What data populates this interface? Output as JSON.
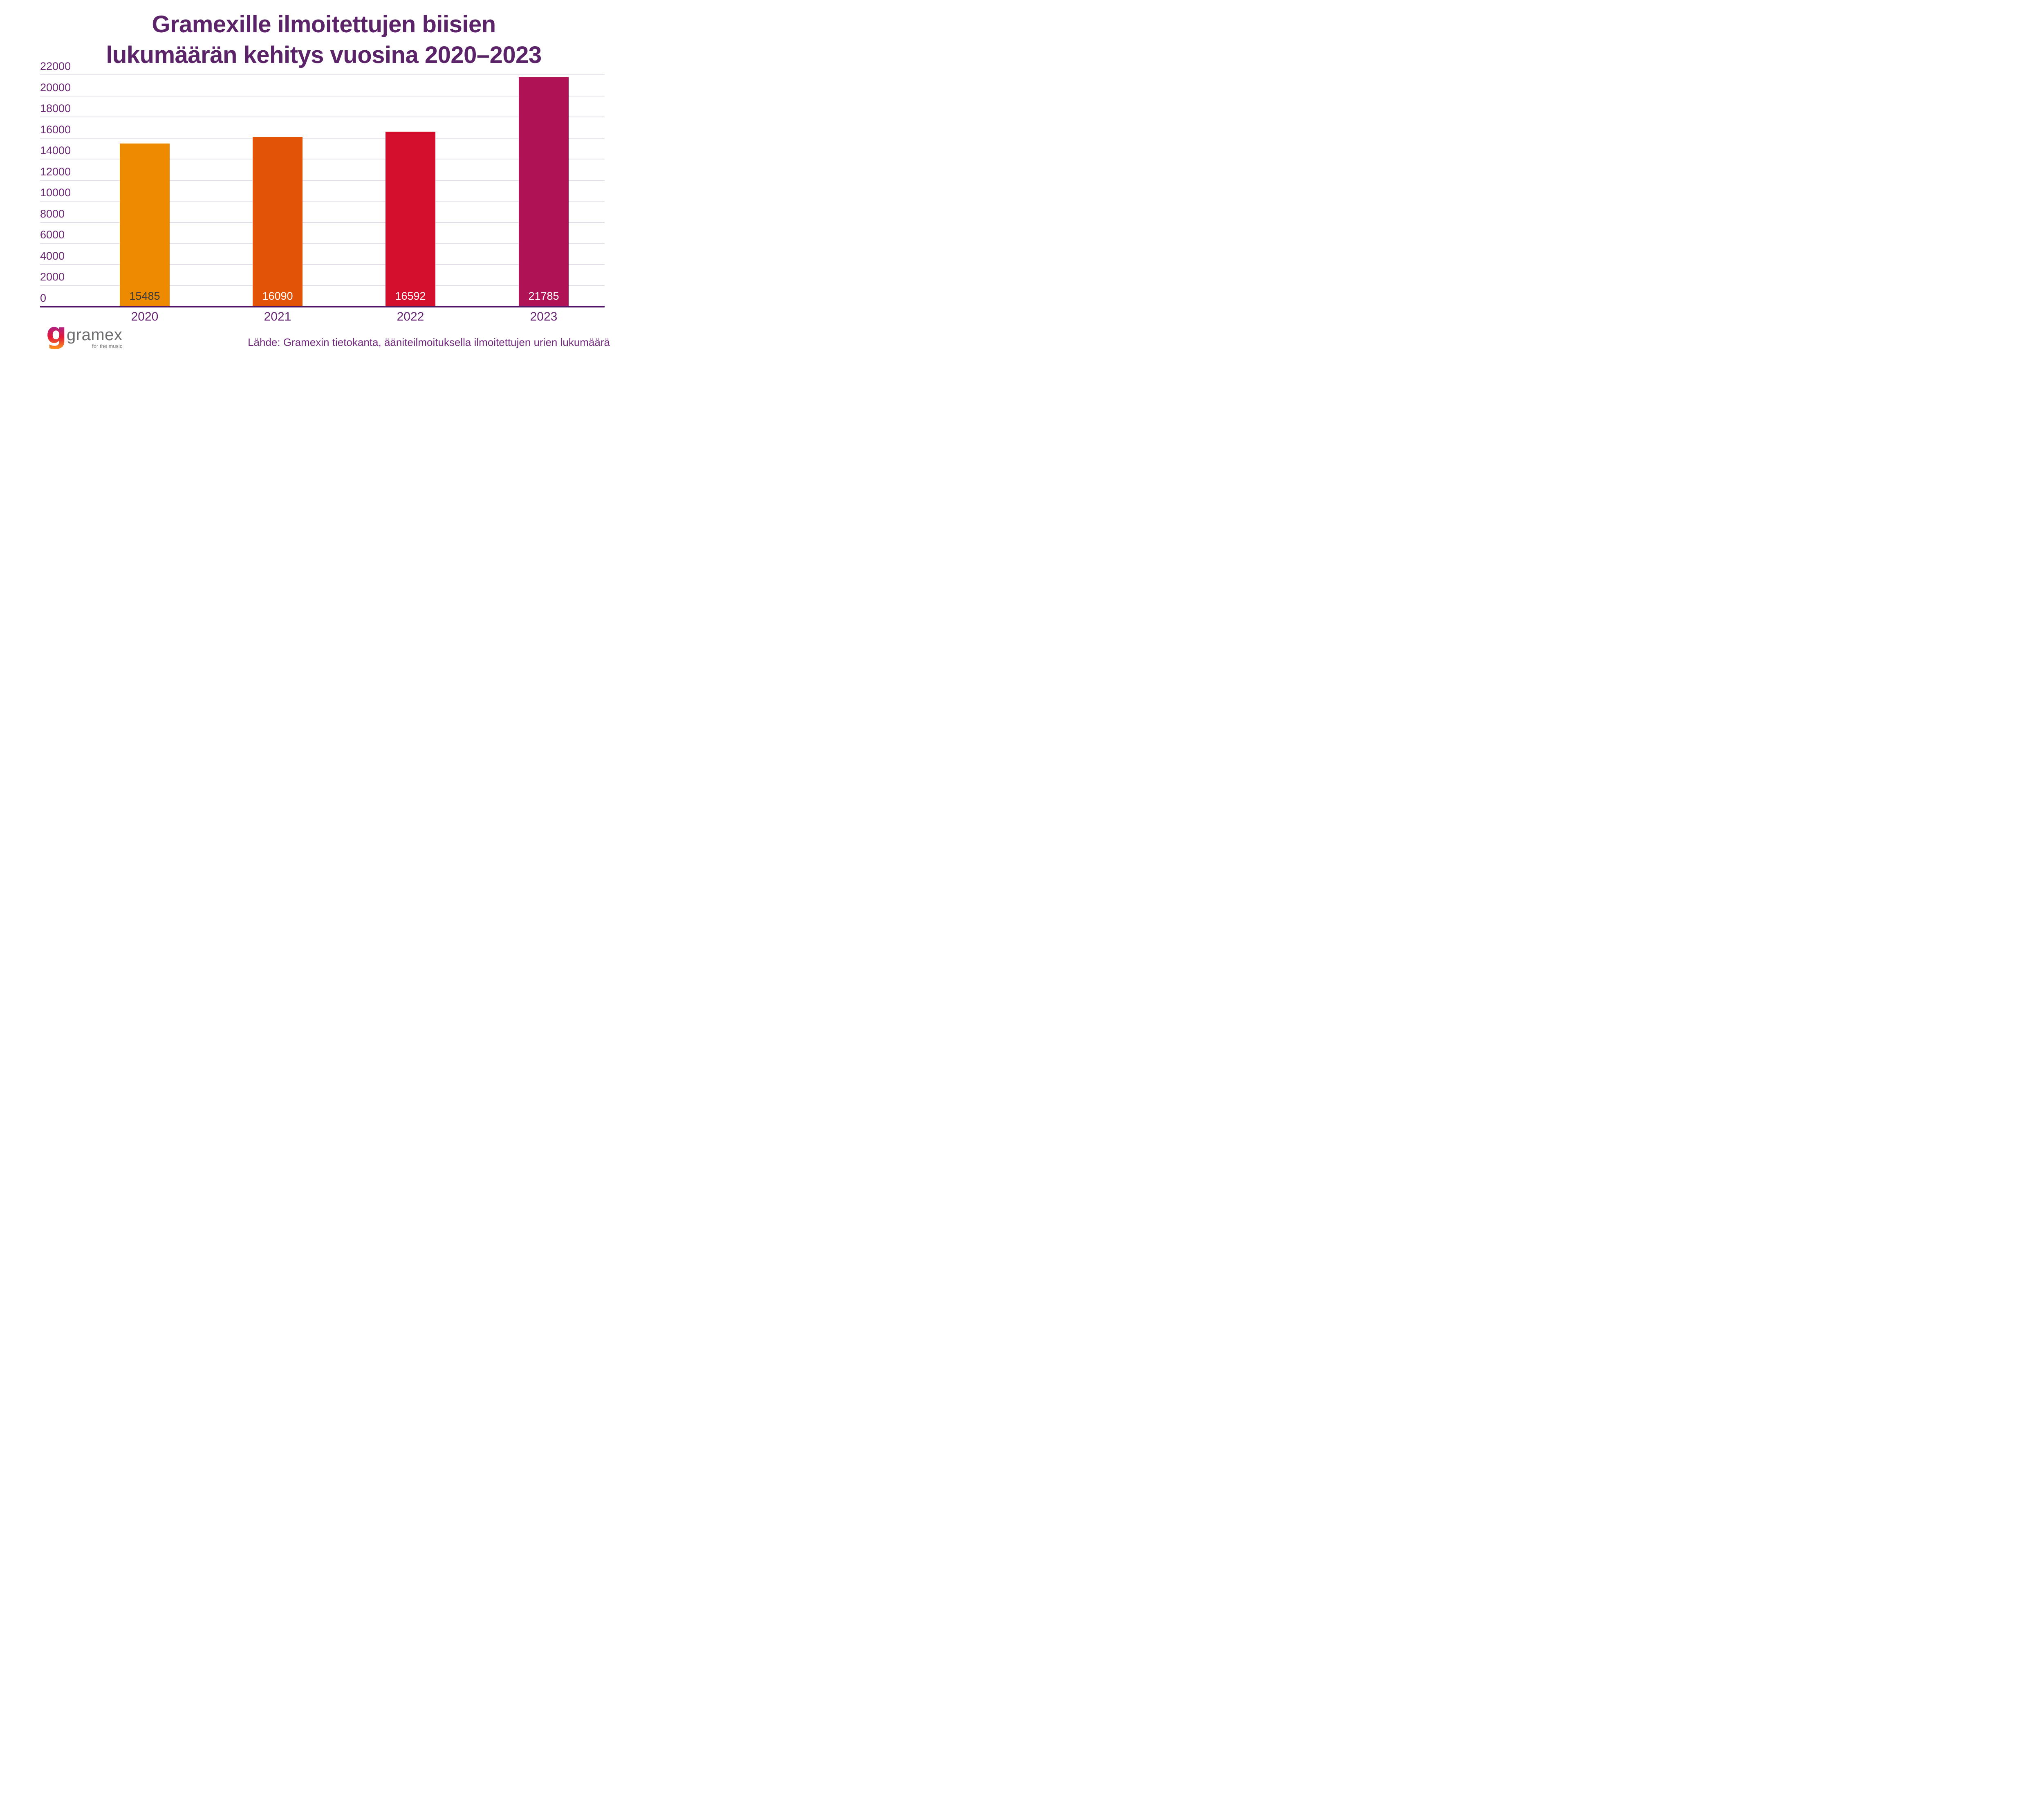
{
  "title": {
    "line1": "Gramexille ilmoitettujen biisien",
    "line2": "lukumäärän kehitys vuosina 2020–2023"
  },
  "chart_data": {
    "type": "bar",
    "title": "Gramexille ilmoitettujen biisien lukumäärän kehitys vuosina 2020–2023",
    "categories": [
      "2020",
      "2021",
      "2022",
      "2023"
    ],
    "values": [
      15485,
      16090,
      16592,
      21785
    ],
    "bar_colors": [
      "#EE8A00",
      "#E25307",
      "#D40F2E",
      "#B01256"
    ],
    "value_label_colors": [
      "#3A3A3A",
      "#FFFFFF",
      "#FFFFFF",
      "#FFFFFF"
    ],
    "xlabel": "",
    "ylabel": "",
    "ylim": [
      0,
      22000
    ],
    "yticks": [
      0,
      2000,
      4000,
      6000,
      8000,
      10000,
      12000,
      14000,
      16000,
      18000,
      20000,
      22000
    ],
    "grid": true,
    "legend_position": "none"
  },
  "footer": {
    "logo": {
      "g": "g",
      "name": "gramex",
      "tagline": "for the music"
    },
    "source": "Lähde: Gramexin tietokanta, ääniteilmoituksella ilmoitettujen urien lukumäärä"
  },
  "colors": {
    "background": "#FFFFFF",
    "title": "#5B2368",
    "axis": "#4E1663",
    "grid": "#E4DEE8",
    "y_labels": "#6B2B74",
    "x_labels": "#63266F",
    "source": "#702B7B",
    "logo_text": "#6D6E71",
    "logo_gradient": [
      "#6A2C8F",
      "#B5207A",
      "#E51937",
      "#F9A11B"
    ]
  }
}
